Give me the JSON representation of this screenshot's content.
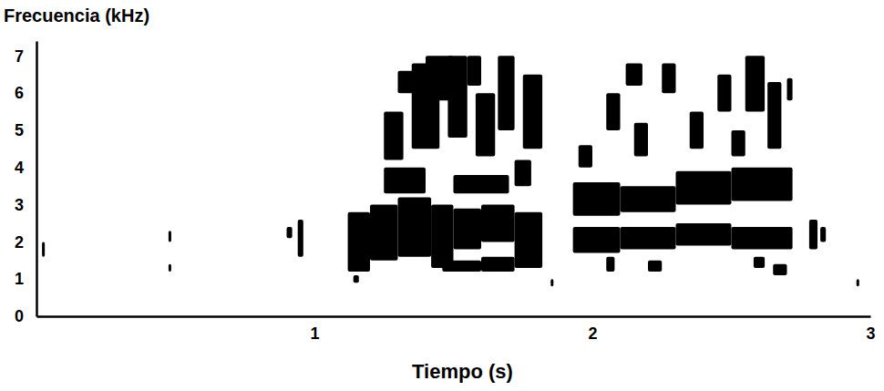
{
  "chart_data": {
    "type": "spectrogram",
    "y_label": "Frecuencia (kHz)",
    "x_label": "Tiempo (s)",
    "xlim": [
      0,
      3
    ],
    "xticks": [
      1,
      2,
      3
    ],
    "ylim": [
      0,
      7.4
    ],
    "yticks": [
      0,
      1,
      2,
      3,
      4,
      5,
      6,
      7
    ],
    "grid": false,
    "color": "#000000",
    "cells": [
      [
        0.02,
        0.03,
        1.6,
        2.0
      ],
      [
        0.475,
        0.485,
        2.0,
        2.3
      ],
      [
        0.475,
        0.485,
        1.2,
        1.4
      ],
      [
        0.9,
        0.92,
        2.1,
        2.4
      ],
      [
        0.94,
        0.96,
        1.6,
        2.6
      ],
      [
        1.12,
        1.2,
        1.2,
        2.8
      ],
      [
        1.2,
        1.3,
        1.5,
        3.0
      ],
      [
        1.3,
        1.42,
        1.6,
        3.2
      ],
      [
        1.42,
        1.5,
        1.3,
        3.0
      ],
      [
        1.5,
        1.6,
        1.8,
        2.9
      ],
      [
        1.6,
        1.72,
        1.2,
        1.6
      ],
      [
        1.6,
        1.72,
        2.0,
        3.0
      ],
      [
        1.72,
        1.82,
        1.3,
        2.8
      ],
      [
        1.46,
        1.6,
        1.2,
        1.5
      ],
      [
        1.25,
        1.4,
        3.3,
        4.0
      ],
      [
        1.5,
        1.7,
        3.3,
        3.8
      ],
      [
        1.72,
        1.78,
        3.5,
        4.2
      ],
      [
        1.25,
        1.32,
        4.2,
        5.5
      ],
      [
        1.35,
        1.45,
        4.5,
        6.8
      ],
      [
        1.48,
        1.55,
        4.8,
        7.0
      ],
      [
        1.58,
        1.65,
        4.3,
        6.0
      ],
      [
        1.66,
        1.72,
        5.0,
        7.0
      ],
      [
        1.75,
        1.82,
        4.5,
        6.5
      ],
      [
        1.4,
        1.5,
        5.8,
        7.0
      ],
      [
        1.3,
        1.36,
        6.0,
        6.6
      ],
      [
        1.55,
        1.6,
        6.2,
        7.0
      ],
      [
        1.14,
        1.16,
        0.9,
        1.1
      ],
      [
        1.85,
        1.86,
        0.8,
        1.0
      ],
      [
        1.93,
        2.1,
        1.7,
        2.4
      ],
      [
        2.1,
        2.3,
        1.8,
        2.4
      ],
      [
        2.3,
        2.5,
        1.9,
        2.5
      ],
      [
        2.5,
        2.72,
        1.8,
        2.4
      ],
      [
        1.93,
        2.1,
        2.7,
        3.6
      ],
      [
        2.1,
        2.3,
        2.8,
        3.5
      ],
      [
        2.3,
        2.5,
        3.0,
        3.9
      ],
      [
        2.5,
        2.72,
        3.1,
        4.0
      ],
      [
        2.05,
        2.08,
        1.2,
        1.6
      ],
      [
        2.2,
        2.25,
        1.2,
        1.5
      ],
      [
        2.58,
        2.62,
        1.3,
        1.6
      ],
      [
        2.65,
        2.7,
        1.1,
        1.4
      ],
      [
        1.95,
        2.0,
        4.0,
        4.6
      ],
      [
        2.05,
        2.1,
        5.0,
        6.0
      ],
      [
        2.15,
        2.2,
        4.3,
        5.2
      ],
      [
        2.25,
        2.3,
        6.0,
        6.8
      ],
      [
        2.35,
        2.4,
        4.5,
        5.5
      ],
      [
        2.45,
        2.5,
        5.5,
        6.5
      ],
      [
        2.5,
        2.55,
        4.3,
        5.0
      ],
      [
        2.55,
        2.62,
        5.5,
        7.0
      ],
      [
        2.63,
        2.68,
        4.5,
        6.3
      ],
      [
        2.7,
        2.72,
        5.8,
        6.4
      ],
      [
        2.12,
        2.18,
        6.2,
        6.8
      ],
      [
        2.78,
        2.81,
        1.8,
        2.6
      ],
      [
        2.82,
        2.84,
        2.0,
        2.4
      ],
      [
        2.95,
        2.96,
        0.8,
        1.0
      ]
    ]
  }
}
